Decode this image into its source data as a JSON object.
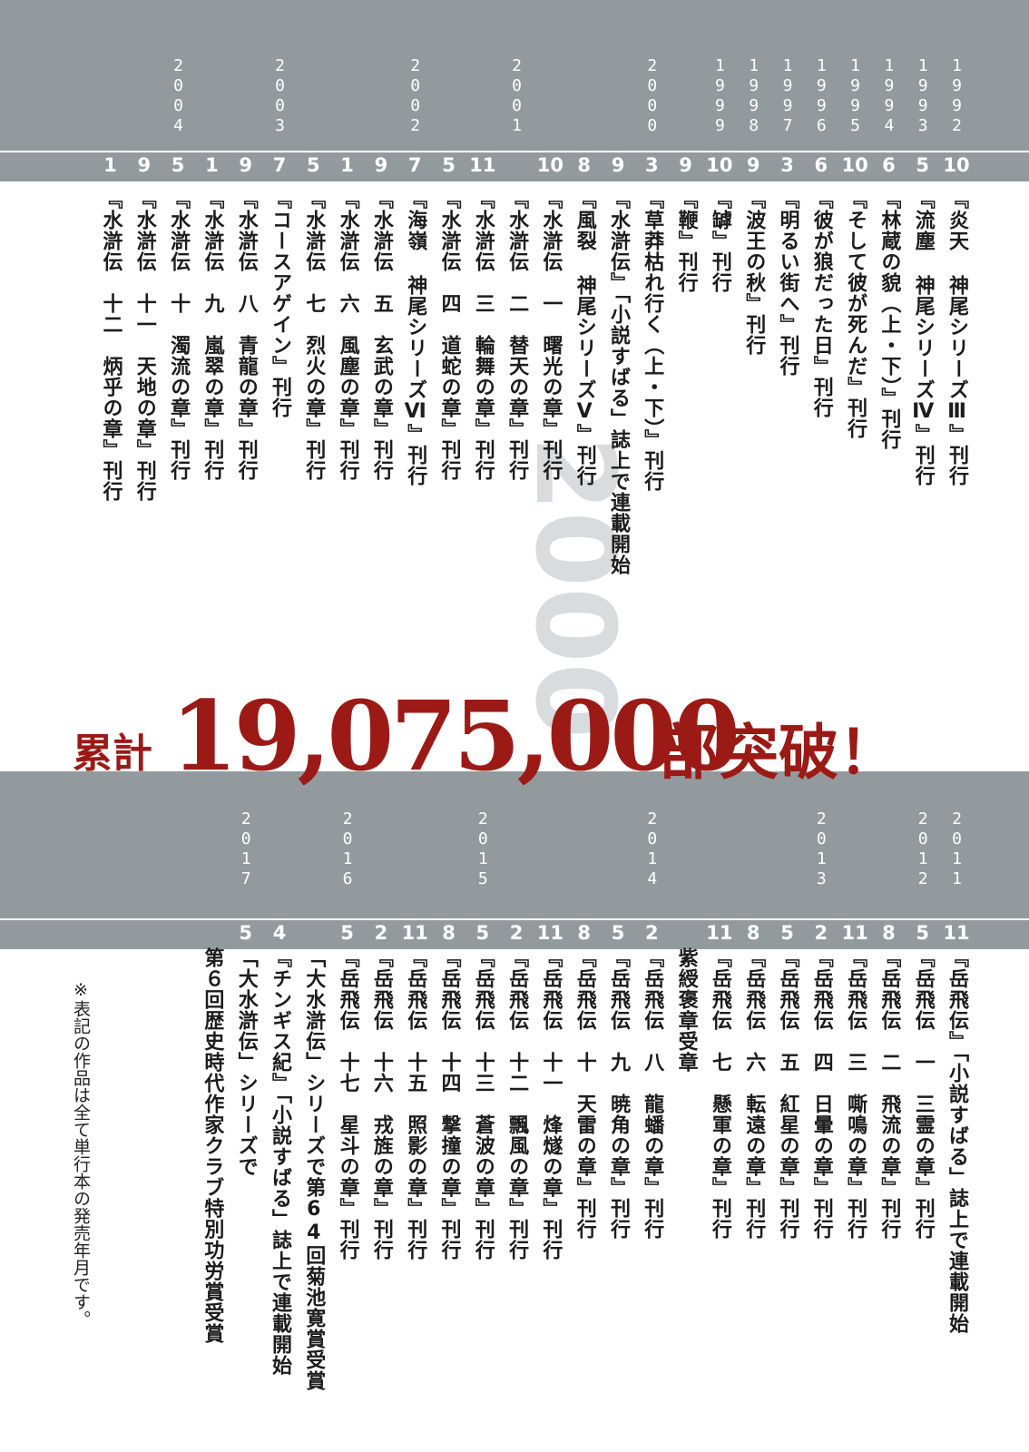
{
  "decorative_year": "2000",
  "headline": {
    "prefix": "累計",
    "number": "19,075,000",
    "suffix": "部突破！"
  },
  "footnote": "※表記の作品は全て単行本の発売年月です。",
  "timeline_top": {
    "years": [
      {
        "col": 0,
        "year": "1992"
      },
      {
        "col": 1,
        "year": "1993"
      },
      {
        "col": 2,
        "year": "1994"
      },
      {
        "col": 3,
        "year": "1995"
      },
      {
        "col": 4,
        "year": "1996"
      },
      {
        "col": 5,
        "year": "1997"
      },
      {
        "col": 6,
        "year": "1998"
      },
      {
        "col": 7,
        "year": "1999"
      },
      {
        "col": 9,
        "year": "2000"
      },
      {
        "col": 13,
        "year": "2001"
      },
      {
        "col": 16,
        "year": "2002"
      },
      {
        "col": 20,
        "year": "2003"
      },
      {
        "col": 23,
        "year": "2004"
      }
    ],
    "entries": [
      {
        "month": "10",
        "text": "『炎天 神尾シリーズⅢ』刊行"
      },
      {
        "month": "5",
        "text": "『流塵 神尾シリーズⅣ』刊行"
      },
      {
        "month": "6",
        "text": "『林蔵の貌（上・下）』刊行"
      },
      {
        "month": "10",
        "text": "『そして彼が死んだ』刊行"
      },
      {
        "month": "6",
        "text": "『彼が狼だった日』刊行"
      },
      {
        "month": "3",
        "text": "『明るい街へ』刊行"
      },
      {
        "month": "9",
        "text": "『波王の秋』刊行"
      },
      {
        "month": "10",
        "text": "『罅』刊行"
      },
      {
        "month": "9",
        "text": "『鞭』刊行"
      },
      {
        "month": "3",
        "text": "『草莽枯れ行く（上・下）』刊行"
      },
      {
        "month": "9",
        "text": "『水滸伝』「小説すばる」誌上で連載開始"
      },
      {
        "month": "8",
        "text": "『風裂 神尾シリーズⅤ』刊行"
      },
      {
        "month": "10",
        "text": "『水滸伝　一　曙光の章』刊行"
      },
      {
        "month": "",
        "text": "『水滸伝　二　替天の章』刊行"
      },
      {
        "month": "11",
        "text": "『水滸伝　三　輪舞の章』刊行"
      },
      {
        "month": "5",
        "text": "『水滸伝　四　道蛇の章』刊行"
      },
      {
        "month": "7",
        "text": "『海嶺 神尾シリーズⅥ』刊行"
      },
      {
        "month": "9",
        "text": "『水滸伝　五　玄武の章』刊行"
      },
      {
        "month": "1",
        "text": "『水滸伝　六　風塵の章』刊行"
      },
      {
        "month": "5",
        "text": "『水滸伝　七　烈火の章』刊行"
      },
      {
        "month": "7",
        "text": "『コースアゲイン』刊行"
      },
      {
        "month": "9",
        "text": "『水滸伝　八　青龍の章』刊行"
      },
      {
        "month": "1",
        "text": "『水滸伝　九　嵐翠の章』刊行"
      },
      {
        "month": "5",
        "text": "『水滸伝　十　濁流の章』刊行"
      },
      {
        "month": "9",
        "text": "『水滸伝　十一　天地の章』刊行"
      },
      {
        "month": "1",
        "text": "『水滸伝　十二　炳乎の章』刊行"
      }
    ]
  },
  "timeline_bottom": {
    "years": [
      {
        "col": 0,
        "year": "2011"
      },
      {
        "col": 1,
        "year": "2012"
      },
      {
        "col": 4,
        "year": "2013"
      },
      {
        "col": 9,
        "year": "2014"
      },
      {
        "col": 14,
        "year": "2015"
      },
      {
        "col": 18,
        "year": "2016"
      },
      {
        "col": 21,
        "year": "2017"
      }
    ],
    "entries": [
      {
        "month": "11",
        "text": "『岳飛伝』「小説すばる」誌上で連載開始"
      },
      {
        "month": "5",
        "text": "『岳飛伝　一　三霊の章』刊行"
      },
      {
        "month": "8",
        "text": "『岳飛伝　二　飛流の章』刊行"
      },
      {
        "month": "11",
        "text": "『岳飛伝　三　嘶鳴の章』刊行"
      },
      {
        "month": "2",
        "text": "『岳飛伝　四　日暈の章』刊行"
      },
      {
        "month": "5",
        "text": "『岳飛伝　五　紅星の章』刊行"
      },
      {
        "month": "8",
        "text": "『岳飛伝　六　転遠の章』刊行"
      },
      {
        "month": "11",
        "text": "『岳飛伝　七　懸軍の章』刊行"
      },
      {
        "month": "",
        "text": "紫綬褒章受章"
      },
      {
        "month": "2",
        "text": "『岳飛伝　八　龍蟠の章』刊行"
      },
      {
        "month": "5",
        "text": "『岳飛伝　九　暁角の章』刊行"
      },
      {
        "month": "8",
        "text": "『岳飛伝　十　天雷の章』刊行"
      },
      {
        "month": "11",
        "text": "『岳飛伝　十一　烽燧の章』刊行"
      },
      {
        "month": "2",
        "text": "『岳飛伝　十二　飄風の章』刊行"
      },
      {
        "month": "5",
        "text": "『岳飛伝　十三　蒼波の章』刊行"
      },
      {
        "month": "8",
        "text": "『岳飛伝　十四　撃撞の章』刊行"
      },
      {
        "month": "11",
        "text": "『岳飛伝　十五　照影の章』刊行"
      },
      {
        "month": "2",
        "text": "『岳飛伝　十六　戎旌の章』刊行"
      },
      {
        "month": "5",
        "text": "『岳飛伝　十七　星斗の章』刊行"
      },
      {
        "month": "",
        "text": "「大水滸伝」シリーズで第64回菊池寛賞受賞"
      },
      {
        "month": "4",
        "text": "『チンギス紀』「小説すばる」誌上で連載開始"
      },
      {
        "month": "5",
        "text": "「大水滸伝」シリーズで"
      },
      {
        "month": "",
        "text": "第６回歴史時代作家クラブ特別功労賞受賞"
      }
    ]
  },
  "colors": {
    "band": "#939a9e",
    "headline": "#9b1a16",
    "text": "#1c1c1c",
    "deco": "#d8dcdf"
  }
}
